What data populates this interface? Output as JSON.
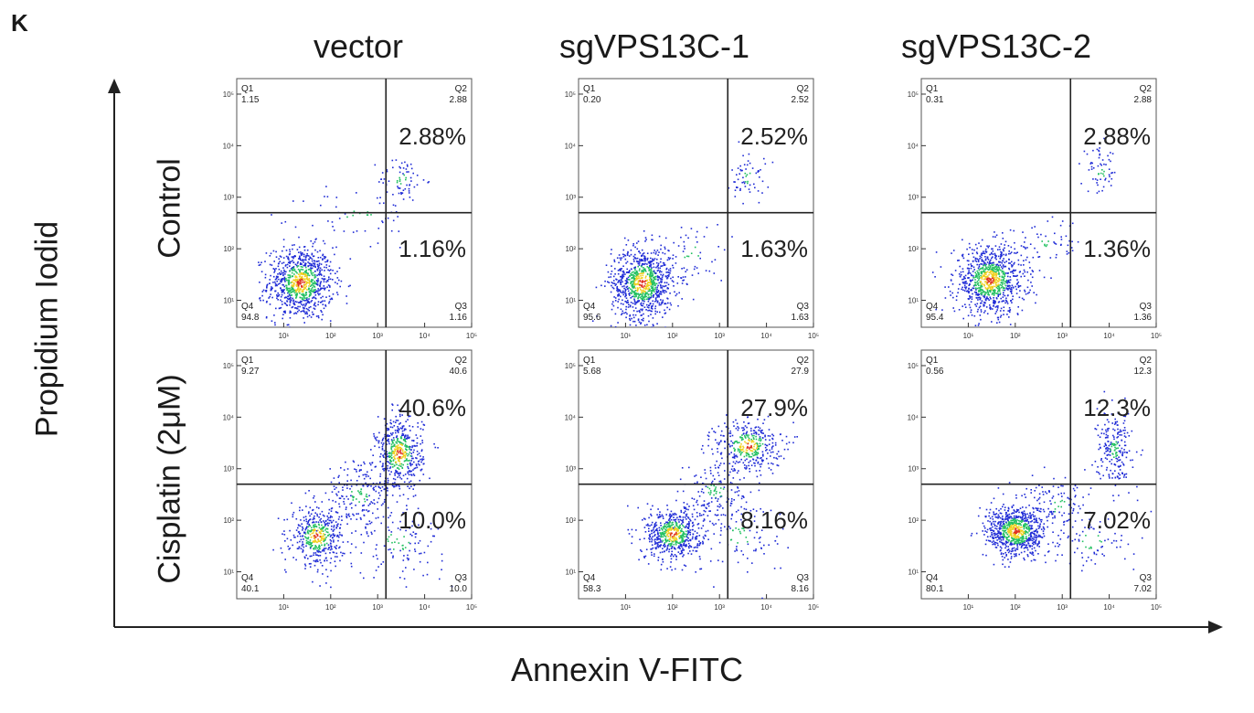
{
  "panel_letter": "K",
  "axes": {
    "x_title": "Annexin V-FITC",
    "y_title": "Propidium Iodid"
  },
  "columns": [
    "vector",
    "sgVPS13C-1",
    "sgVPS13C-2"
  ],
  "rows": [
    "Control",
    "Cisplatin (2μM)"
  ],
  "colors": {
    "density_low": "#1f2bd6",
    "density_mid": "#22c060",
    "density_high": "#f0d020",
    "density_peak": "#e03020",
    "gate_lines": "#222222"
  },
  "chart_data": {
    "type": "scatter",
    "subtype": "flow-cytometry-quadrant-density",
    "x_scale": "log",
    "y_scale": "log",
    "xlim": [
      1,
      100000
    ],
    "ylim": [
      3,
      200000
    ],
    "x_ticks": [
      "10¹",
      "10²",
      "10³",
      "10⁴",
      "10⁵"
    ],
    "y_ticks": [
      "10¹",
      "10²",
      "10³",
      "10⁴",
      "10⁵"
    ],
    "gate": {
      "x": 1500,
      "y": 500
    },
    "quadrant_names": [
      "Q1",
      "Q2",
      "Q3",
      "Q4"
    ],
    "panels": [
      {
        "column": "vector",
        "row": "Control",
        "q": {
          "Q1": "1.15",
          "Q2": "2.88",
          "Q3": "1.16",
          "Q4": "94.8"
        },
        "big": {
          "Q2": "2.88%",
          "Q3": "1.16%"
        }
      },
      {
        "column": "sgVPS13C-1",
        "row": "Control",
        "q": {
          "Q1": "0.20",
          "Q2": "2.52",
          "Q3": "1.63",
          "Q4": "95.6"
        },
        "big": {
          "Q2": "2.52%",
          "Q3": "1.63%"
        }
      },
      {
        "column": "sgVPS13C-2",
        "row": "Control",
        "q": {
          "Q1": "0.31",
          "Q2": "2.88",
          "Q3": "1.36",
          "Q4": "95.4"
        },
        "big": {
          "Q2": "2.88%",
          "Q3": "1.36%"
        }
      },
      {
        "column": "vector",
        "row": "Cisplatin (2μM)",
        "q": {
          "Q1": "9.27",
          "Q2": "40.6",
          "Q3": "10.0",
          "Q4": "40.1"
        },
        "big": {
          "Q2": "40.6%",
          "Q3": "10.0%"
        }
      },
      {
        "column": "sgVPS13C-1",
        "row": "Cisplatin (2μM)",
        "q": {
          "Q1": "5.68",
          "Q2": "27.9",
          "Q3": "8.16",
          "Q4": "58.3"
        },
        "big": {
          "Q2": "27.9%",
          "Q3": "8.16%"
        }
      },
      {
        "column": "sgVPS13C-2",
        "row": "Cisplatin (2μM)",
        "q": {
          "Q1": "0.56",
          "Q2": "12.3",
          "Q3": "7.02",
          "Q4": "80.1"
        },
        "big": {
          "Q2": "12.3%",
          "Q3": "7.02%"
        }
      }
    ]
  }
}
